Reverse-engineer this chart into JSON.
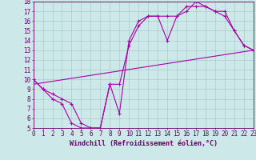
{
  "xlabel": "Windchill (Refroidissement éolien,°C)",
  "bg_color": "#cce8e8",
  "grid_color": "#aacccc",
  "line_color": "#aa00aa",
  "spine_color": "#660066",
  "xlim": [
    0,
    23
  ],
  "ylim": [
    5,
    18
  ],
  "xticks": [
    0,
    1,
    2,
    3,
    4,
    5,
    6,
    7,
    8,
    9,
    10,
    11,
    12,
    13,
    14,
    15,
    16,
    17,
    18,
    19,
    20,
    21,
    22,
    23
  ],
  "yticks": [
    5,
    6,
    7,
    8,
    9,
    10,
    11,
    12,
    13,
    14,
    15,
    16,
    17,
    18
  ],
  "line1_x": [
    0,
    1,
    2,
    3,
    4,
    5,
    6,
    7,
    8,
    9,
    10,
    11,
    12,
    13,
    14,
    15,
    16,
    17,
    18,
    19,
    20,
    21,
    22,
    23
  ],
  "line1_y": [
    10,
    9,
    8,
    7.5,
    5.5,
    5,
    5,
    5,
    9.5,
    6.5,
    14,
    16,
    16.5,
    16.5,
    14,
    16.5,
    17,
    18,
    17.5,
    17,
    17,
    15,
    13.5,
    13
  ],
  "line2_x": [
    0,
    1,
    2,
    3,
    4,
    5,
    6,
    7,
    8,
    9,
    10,
    11,
    12,
    13,
    14,
    15,
    16,
    17,
    18,
    19,
    20,
    21,
    22,
    23
  ],
  "line2_y": [
    10,
    9,
    8.5,
    8,
    7.5,
    5.5,
    5,
    5,
    9.5,
    9.5,
    13.5,
    15.5,
    16.5,
    16.5,
    16.5,
    16.5,
    17.5,
    17.5,
    17.5,
    17,
    16.5,
    15,
    13.5,
    13
  ],
  "line3_x": [
    0,
    23
  ],
  "line3_y": [
    9.5,
    13
  ],
  "tick_fontsize": 5.5,
  "xlabel_fontsize": 6.0
}
